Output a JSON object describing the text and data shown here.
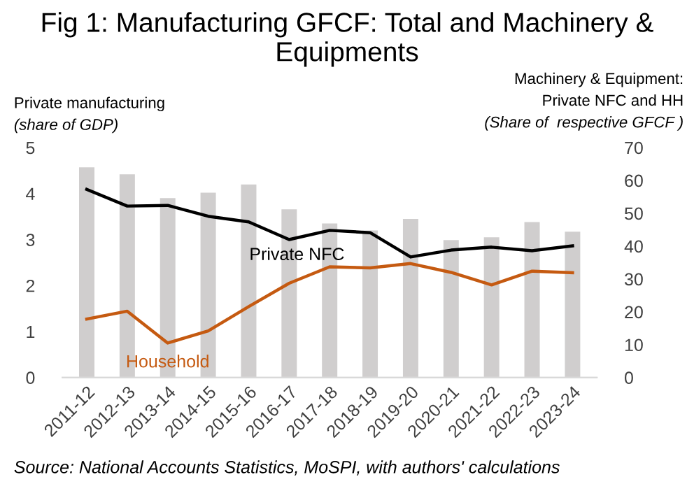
{
  "chart_data": {
    "type": "bar",
    "title": "Fig 1: Manufacturing GFCF: Total and Machinery & Equipments",
    "ylabel": "Private manufacturing\n(share of GDP)",
    "y2label": "Machinery & Equipment:\nPrivate NFC and HH\n(Share of  respective GFCF )",
    "categories": [
      "2011-12",
      "2012-13",
      "2013-14",
      "2014-15",
      "2015-16",
      "2016-17",
      "2017-18",
      "2018-19",
      "2019-20",
      "2020-21",
      "2021-22",
      "2022-23",
      "2023-24"
    ],
    "series": [
      {
        "color": "#d0cece",
        "values": [
          4.57,
          4.42,
          3.9,
          4.02,
          4.2,
          3.66,
          3.35,
          3.2,
          3.45,
          2.99,
          3.05,
          3.38,
          3.17
        ]
      },
      {
        "type": "line",
        "axis": "y2",
        "name": "Private NFC",
        "color": "#000000",
        "values": [
          57.3,
          52.2,
          52.4,
          49.1,
          47.4,
          42,
          44.8,
          44.1,
          36.7,
          38.8,
          39.7,
          38.6,
          40.1
        ]
      },
      {
        "type": "line",
        "axis": "y2",
        "name": "Household",
        "color": "#c55a11",
        "values": [
          17.8,
          20.2,
          10.5,
          14.2,
          21.6,
          28.7,
          33.7,
          33.4,
          34.7,
          32,
          28.2,
          32.4,
          31.9
        ]
      }
    ],
    "ylim": [
      0,
      5
    ],
    "yticks": [
      0,
      1,
      2,
      3,
      4,
      5
    ],
    "y2lim": [
      0,
      70
    ],
    "y2ticks": [
      0,
      10,
      20,
      30,
      40,
      50,
      60,
      70
    ],
    "grid": false,
    "legend": false,
    "marker": "none",
    "annotations": [
      "Source: National Accounts Statistics, MoSPI, with authors' calculations"
    ]
  }
}
